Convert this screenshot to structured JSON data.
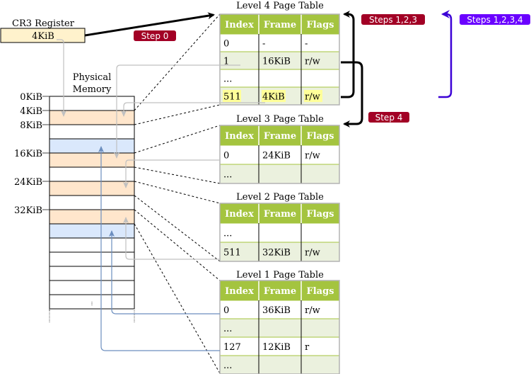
{
  "cr3": {
    "title": "CR3 Register",
    "value": "4KiB"
  },
  "memory": {
    "title_line1": "Physical",
    "title_line2": "Memory",
    "labels": [
      "0KiB",
      "4KiB",
      "8KiB",
      "16KiB",
      "24KiB",
      "32KiB"
    ]
  },
  "columns": [
    "Index",
    "Frame",
    "Flags"
  ],
  "tables": [
    {
      "title": "Level 4 Page Table",
      "rows": [
        [
          "0",
          "-",
          "-"
        ],
        [
          "1",
          "16KiB",
          "r/w"
        ],
        [
          "...",
          "",
          ""
        ],
        [
          "511",
          "4KiB",
          "r/w"
        ]
      ]
    },
    {
      "title": "Level 3 Page Table",
      "rows": [
        [
          "0",
          "24KiB",
          "r/w"
        ],
        [
          "...",
          "",
          ""
        ]
      ]
    },
    {
      "title": "Level 2 Page Table",
      "rows": [
        [
          "...",
          "",
          ""
        ],
        [
          "511",
          "32KiB",
          "r/w"
        ]
      ]
    },
    {
      "title": "Level 1 Page Table",
      "rows": [
        [
          "0",
          "36KiB",
          "r/w"
        ],
        [
          "...",
          "",
          ""
        ],
        [
          "127",
          "12KiB",
          "r"
        ],
        [
          "...",
          "",
          ""
        ]
      ]
    }
  ],
  "badges": {
    "step0": "Step 0",
    "steps123": "Steps 1,2,3",
    "step4": "Step 4",
    "steps1234": "Steps 1,2,3,4"
  },
  "colors": {
    "table_header": "#a4c43f",
    "row_alt": "#ebf1de",
    "highlight": "#ffff99",
    "mem_table_frame": "#ffe6cc",
    "mem_data_frame": "#dae8fc",
    "badge_red": "#a20025",
    "badge_purple": "#6a00ff",
    "arrow_purple": "#3b00d6",
    "link_blue": "#6c8ebf"
  }
}
